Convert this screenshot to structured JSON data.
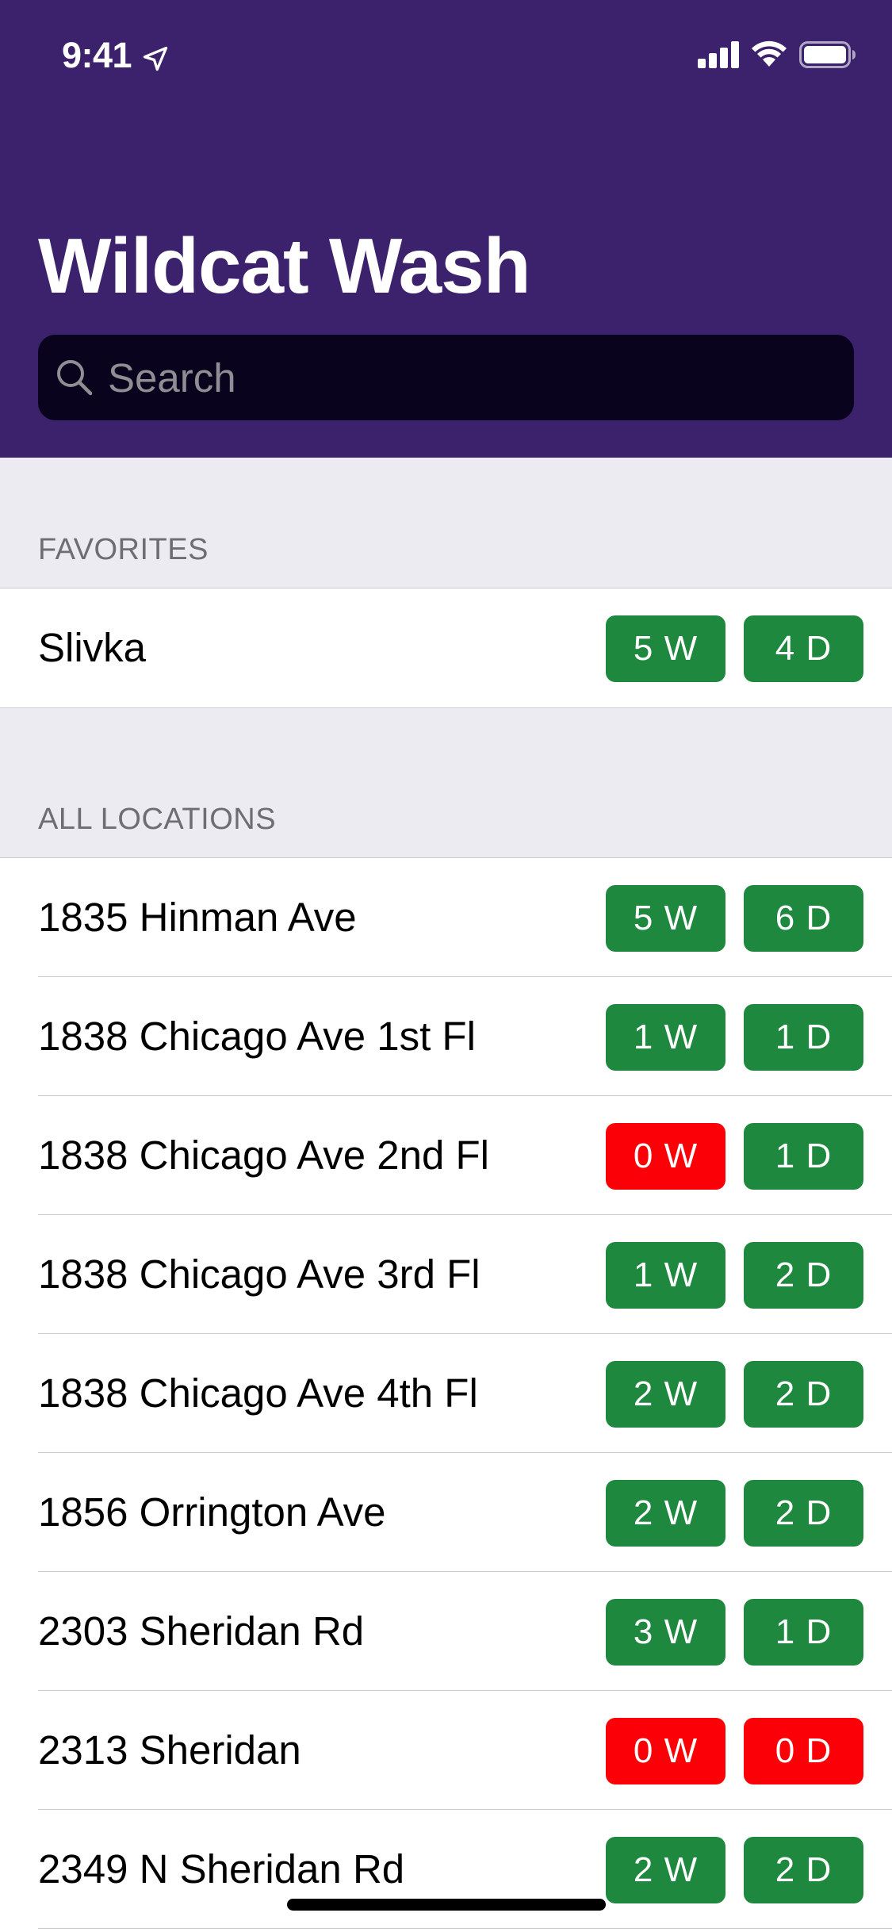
{
  "status_bar": {
    "time": "9:41",
    "icons": [
      "location-arrow-icon",
      "cellular-signal-icon",
      "wifi-icon",
      "battery-icon"
    ]
  },
  "header": {
    "title": "Wildcat Wash",
    "background_color": "#3c226c"
  },
  "search": {
    "placeholder": "Search",
    "value": ""
  },
  "colors": {
    "available": "#1d883e",
    "unavailable": "#fb0006",
    "section_background": "#ebebf1"
  },
  "sections": {
    "favorites": {
      "title": "FAVORITES",
      "items": [
        {
          "name": "Slivka",
          "washers": "5 W",
          "dryers": "4 D",
          "washers_available": true,
          "dryers_available": true
        }
      ]
    },
    "all_locations": {
      "title": "ALL LOCATIONS",
      "items": [
        {
          "name": "1835 Hinman Ave",
          "washers": "5 W",
          "dryers": "6 D",
          "washers_available": true,
          "dryers_available": true
        },
        {
          "name": "1838 Chicago Ave 1st Fl",
          "washers": "1 W",
          "dryers": "1 D",
          "washers_available": true,
          "dryers_available": true
        },
        {
          "name": "1838 Chicago Ave 2nd Fl",
          "washers": "0 W",
          "dryers": "1 D",
          "washers_available": false,
          "dryers_available": true
        },
        {
          "name": "1838 Chicago Ave 3rd Fl",
          "washers": "1 W",
          "dryers": "2 D",
          "washers_available": true,
          "dryers_available": true
        },
        {
          "name": "1838 Chicago Ave 4th Fl",
          "washers": "2 W",
          "dryers": "2 D",
          "washers_available": true,
          "dryers_available": true
        },
        {
          "name": "1856 Orrington Ave",
          "washers": "2 W",
          "dryers": "2 D",
          "washers_available": true,
          "dryers_available": true
        },
        {
          "name": "2303 Sheridan Rd",
          "washers": "3 W",
          "dryers": "1 D",
          "washers_available": true,
          "dryers_available": true
        },
        {
          "name": "2313 Sheridan",
          "washers": "0 W",
          "dryers": "0 D",
          "washers_available": false,
          "dryers_available": false
        },
        {
          "name": "2349 N Sheridan Rd",
          "washers": "2 W",
          "dryers": "2 D",
          "washers_available": true,
          "dryers_available": true
        }
      ]
    }
  }
}
